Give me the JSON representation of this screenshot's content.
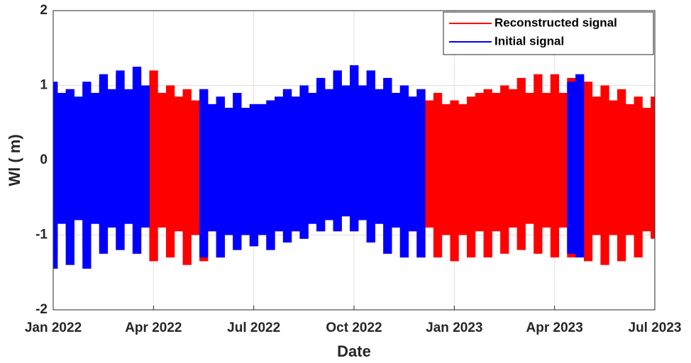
{
  "chart_data": {
    "type": "range",
    "xlabel": "Date",
    "ylabel": "Wl ( m)",
    "xlim": [
      0,
      18
    ],
    "xticks": [
      {
        "value": 0,
        "label": "Jan 2022"
      },
      {
        "value": 3,
        "label": "Apr 2022"
      },
      {
        "value": 6,
        "label": "Jul 2022"
      },
      {
        "value": 9,
        "label": "Oct 2022"
      },
      {
        "value": 12,
        "label": "Jan 2023"
      },
      {
        "value": 15,
        "label": "Apr 2023"
      },
      {
        "value": 18,
        "label": "Jul 2023"
      }
    ],
    "ylim": [
      -2,
      2
    ],
    "yticks": [
      -2,
      -1,
      0,
      1,
      2
    ],
    "grid": true,
    "legend": "upper right",
    "x": [
      0,
      0.25,
      0.5,
      0.75,
      1,
      1.25,
      1.5,
      1.75,
      2,
      2.25,
      2.5,
      2.75,
      3,
      3.25,
      3.5,
      3.75,
      4,
      4.25,
      4.5,
      4.75,
      5,
      5.25,
      5.5,
      5.75,
      6,
      6.25,
      6.5,
      6.75,
      7,
      7.25,
      7.5,
      7.75,
      8,
      8.25,
      8.5,
      8.75,
      9,
      9.25,
      9.5,
      9.75,
      10,
      10.25,
      10.5,
      10.75,
      11,
      11.25,
      11.5,
      11.75,
      12,
      12.25,
      12.5,
      12.75,
      13,
      13.25,
      13.5,
      13.75,
      14,
      14.25,
      14.5,
      14.75,
      15,
      15.25,
      15.5,
      15.75,
      16,
      16.25,
      16.5,
      16.75,
      17,
      17.25,
      17.5,
      17.75,
      18
    ],
    "series": [
      {
        "name": "Reconstructed signal",
        "color": "#ff0000",
        "high": [
          1.0,
          0.85,
          0.95,
          0.8,
          1.0,
          0.85,
          1.05,
          0.9,
          1.15,
          0.9,
          1.2,
          0.95,
          1.2,
          0.9,
          1.0,
          0.85,
          0.95,
          0.8,
          0.95,
          0.75,
          0.85,
          0.7,
          0.9,
          0.7,
          0.75,
          0.75,
          0.8,
          0.85,
          0.95,
          0.85,
          1.0,
          0.9,
          1.1,
          0.95,
          1.2,
          1.0,
          1.25,
          1.0,
          1.2,
          0.95,
          1.1,
          0.9,
          1.0,
          0.85,
          0.95,
          0.8,
          0.9,
          0.75,
          0.8,
          0.75,
          0.85,
          0.9,
          0.95,
          0.9,
          1.0,
          0.95,
          1.1,
          0.9,
          1.15,
          0.9,
          1.15,
          0.9,
          1.1,
          0.85,
          1.05,
          0.85,
          1.0,
          0.8,
          0.95,
          0.75,
          0.85,
          0.7,
          0.85
        ],
        "low": [
          -1.25,
          -0.8,
          -1.0,
          -0.8,
          -1.2,
          -0.85,
          -1.2,
          -0.9,
          -1.2,
          -0.85,
          -1.25,
          -0.9,
          -1.35,
          -0.9,
          -1.3,
          -0.95,
          -1.4,
          -1.0,
          -1.35,
          -0.95,
          -1.3,
          -1.0,
          -1.2,
          -1.0,
          -1.15,
          -1.0,
          -1.2,
          -0.95,
          -1.1,
          -0.95,
          -1.05,
          -0.85,
          -0.95,
          -0.8,
          -0.95,
          -0.75,
          -0.95,
          -0.8,
          -1.1,
          -0.85,
          -1.25,
          -0.9,
          -1.3,
          -0.95,
          -1.3,
          -0.9,
          -1.3,
          -1.0,
          -1.35,
          -1.0,
          -1.3,
          -0.95,
          -1.3,
          -0.95,
          -1.25,
          -0.9,
          -1.2,
          -0.85,
          -1.25,
          -0.9,
          -1.3,
          -0.9,
          -1.3,
          -0.95,
          -1.35,
          -1.0,
          -1.4,
          -1.0,
          -1.35,
          -1.0,
          -1.3,
          -0.95,
          -1.05
        ]
      },
      {
        "name": "Initial signal",
        "color": "#0000ff",
        "high": [
          1.05,
          0.9,
          0.95,
          0.85,
          1.05,
          0.9,
          1.15,
          0.95,
          1.2,
          0.95,
          1.25,
          1.0,
          null,
          null,
          null,
          null,
          null,
          null,
          0.95,
          0.75,
          0.85,
          0.7,
          0.9,
          0.7,
          0.75,
          0.75,
          0.8,
          0.85,
          0.95,
          0.85,
          1.0,
          0.9,
          1.1,
          0.95,
          1.2,
          1.0,
          1.27,
          1.0,
          1.2,
          0.95,
          1.1,
          0.9,
          1.0,
          0.85,
          0.95,
          null,
          null,
          null,
          null,
          null,
          null,
          null,
          null,
          null,
          null,
          null,
          null,
          null,
          null,
          null,
          null,
          null,
          1.05,
          1.15,
          null,
          null,
          null,
          null,
          null,
          null,
          null,
          null,
          null
        ],
        "low": [
          -1.45,
          -0.85,
          -1.4,
          -0.8,
          -1.45,
          -0.85,
          -1.25,
          -0.9,
          -1.2,
          -0.85,
          -1.25,
          -0.9,
          null,
          null,
          null,
          null,
          null,
          null,
          -1.3,
          -0.95,
          -1.3,
          -1.0,
          -1.2,
          -1.0,
          -1.15,
          -1.0,
          -1.2,
          -0.95,
          -1.1,
          -0.95,
          -1.05,
          -0.85,
          -0.95,
          -0.8,
          -0.95,
          -0.75,
          -0.95,
          -0.8,
          -1.1,
          -0.85,
          -1.25,
          -0.9,
          -1.3,
          -0.95,
          -1.3,
          null,
          null,
          null,
          null,
          null,
          null,
          null,
          null,
          null,
          null,
          null,
          null,
          null,
          null,
          null,
          null,
          null,
          -1.25,
          -1.3,
          null,
          null,
          null,
          null,
          null,
          null,
          null,
          null,
          null
        ]
      }
    ]
  }
}
